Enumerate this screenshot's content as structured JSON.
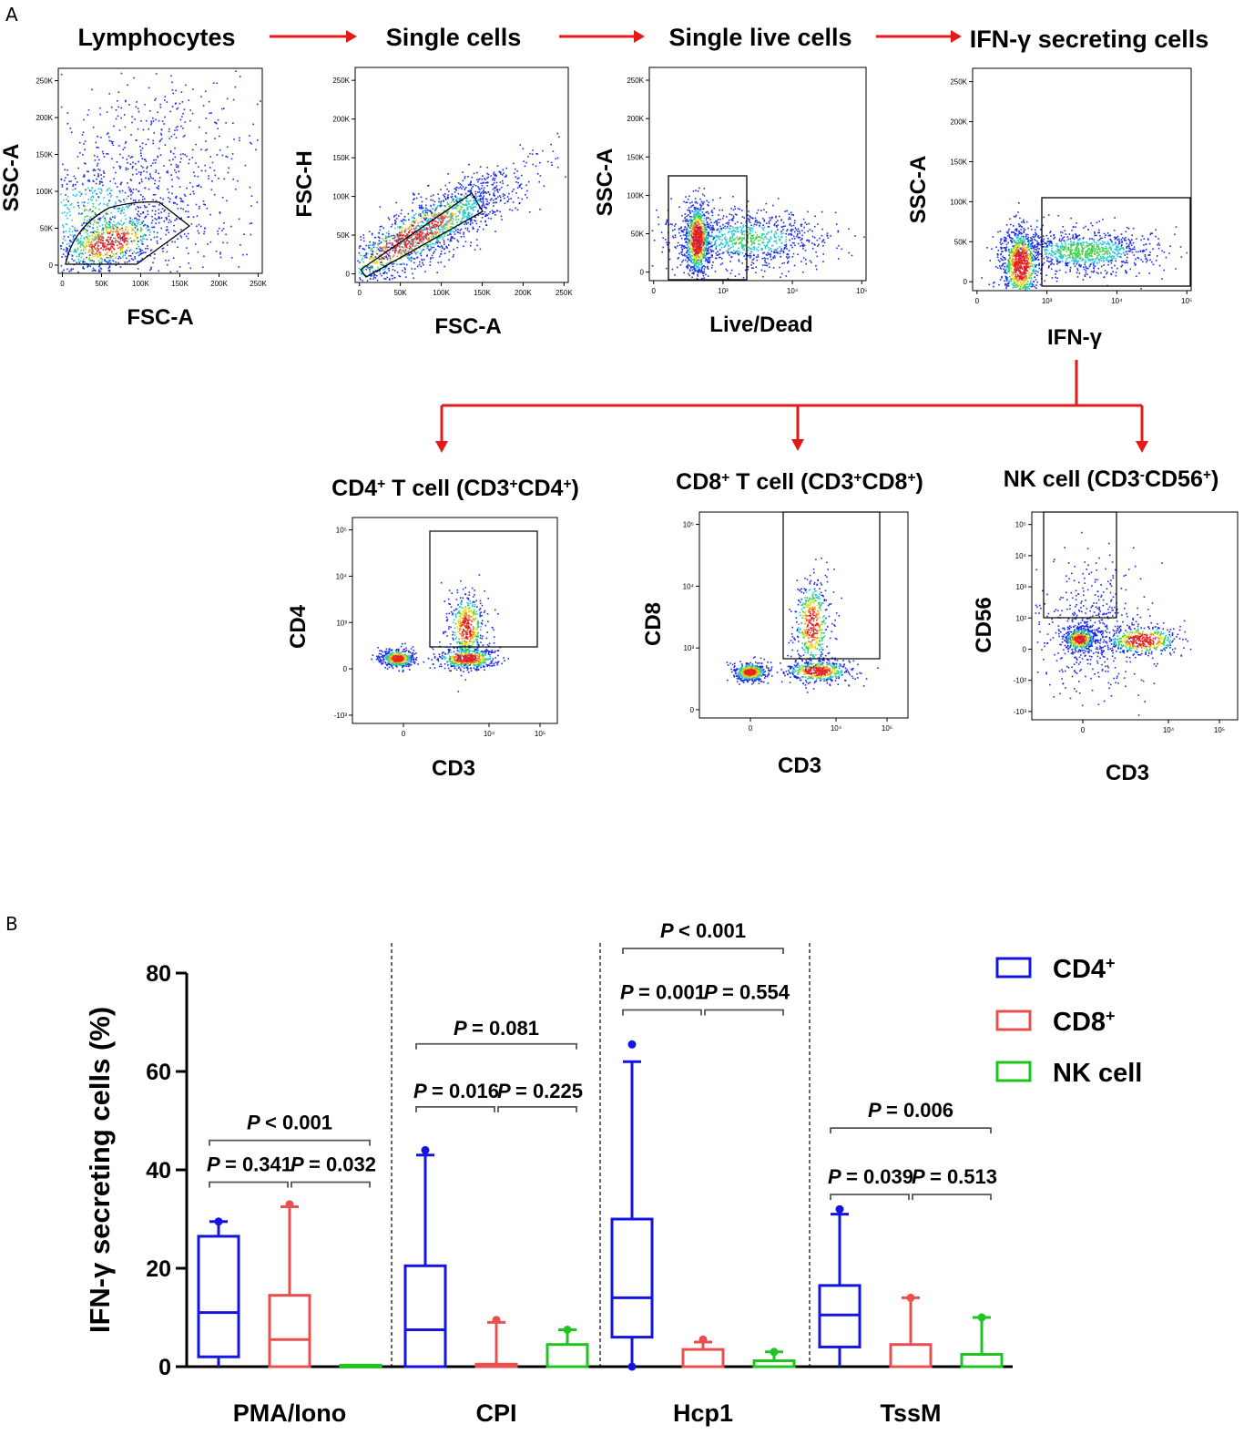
{
  "panel_a": {
    "label": "A",
    "gating_steps": [
      {
        "title": "Lymphocytes",
        "xlabel": "FSC-A",
        "ylabel": "SSC-A",
        "xticks": [
          "0",
          "50K",
          "100K",
          "150K",
          "200K",
          "250K"
        ],
        "yticks": [
          "0",
          "50K",
          "100K",
          "150K",
          "200K",
          "250K"
        ]
      },
      {
        "title": "Single cells",
        "xlabel": "FSC-A",
        "ylabel": "FSC-H",
        "xticks": [
          "0",
          "50K",
          "100K",
          "150K",
          "200K",
          "250K"
        ],
        "yticks": [
          "0",
          "50K",
          "100K",
          "150K",
          "200K",
          "250K"
        ]
      },
      {
        "title": "Single live cells",
        "xlabel": "Live/Dead",
        "ylabel": "SSC-A",
        "xticks": [
          "0",
          "10³",
          "10⁴",
          "10⁵"
        ],
        "yticks": [
          "0",
          "50K",
          "100K",
          "150K",
          "200K",
          "250K"
        ]
      },
      {
        "title": "IFN-γ secreting cells",
        "xlabel": "IFN-γ",
        "ylabel": "SSC-A",
        "xticks": [
          "0",
          "10³",
          "10⁴",
          "10⁵"
        ],
        "yticks": [
          "0",
          "50K",
          "100K",
          "150K",
          "200K",
          "250K"
        ]
      }
    ],
    "subsets": [
      {
        "title_main": "CD4",
        "title_sup": "+",
        "title_rest": " T cell (CD3",
        "title_sup2": "+",
        "title_mid": "CD4",
        "title_sup3": "+",
        "title_end": ")",
        "xlabel": "CD3",
        "ylabel": "CD4",
        "xticks": [
          "0",
          "10⁴",
          "10⁵"
        ],
        "yticks": [
          "-10³",
          "0",
          "10³",
          "10⁴",
          "10⁵"
        ]
      },
      {
        "title_main": "CD8",
        "title_sup": "+",
        "title_rest": " T cell (CD3",
        "title_sup2": "+",
        "title_mid": "CD8",
        "title_sup3": "+",
        "title_end": ")",
        "xlabel": "CD3",
        "ylabel": "CD8",
        "xticks": [
          "0",
          "10⁴",
          "10⁵"
        ],
        "yticks": [
          "0",
          "10³",
          "10⁴",
          "10⁵"
        ]
      },
      {
        "title_main": "NK cell (CD3",
        "title_sup": "-",
        "title_rest": "CD56",
        "title_sup2": "+",
        "title_mid": "",
        "title_sup3": "",
        "title_end": ")",
        "xlabel": "CD3",
        "ylabel": "CD56",
        "xticks": [
          "0",
          "10⁴",
          "10⁵"
        ],
        "yticks": [
          "-10³",
          "-10²",
          "0",
          "10²",
          "10³",
          "10⁴",
          "10⁵"
        ]
      }
    ]
  },
  "panel_b": {
    "label": "B"
  },
  "colors": {
    "cd4": "#1414e0",
    "cd8": "#e85050",
    "nk": "#1fc41f",
    "arrow": "#e41a1a"
  },
  "chart_data": {
    "type": "box",
    "ylabel": "IFN-γ secreting cells (%)",
    "ylim": [
      0,
      80
    ],
    "yticks": [
      "0",
      "20",
      "40",
      "60",
      "80"
    ],
    "categories": [
      "PMA/Iono",
      "CPI",
      "Hcp1",
      "TssM"
    ],
    "legend": [
      {
        "name": "CD4",
        "sup": "+"
      },
      {
        "name": "CD8",
        "sup": "+"
      },
      {
        "name": "NK cell",
        "sup": ""
      }
    ],
    "series": [
      {
        "name": "CD4+",
        "boxes": [
          {
            "min": 0,
            "q1": 2,
            "median": 11,
            "q3": 26.5,
            "max": 29.5,
            "outliers": [
              29.5
            ]
          },
          {
            "min": 0,
            "q1": 0,
            "median": 7.5,
            "q3": 20.5,
            "max": 43,
            "outliers": [
              44
            ]
          },
          {
            "min": 0,
            "q1": 6,
            "median": 14,
            "q3": 30,
            "max": 62,
            "outliers": [
              65.5,
              0
            ]
          },
          {
            "min": 0,
            "q1": 4,
            "median": 10.5,
            "q3": 16.5,
            "max": 31,
            "outliers": [
              32
            ]
          }
        ]
      },
      {
        "name": "CD8+",
        "boxes": [
          {
            "min": 0,
            "q1": 0,
            "median": 5.5,
            "q3": 14.5,
            "max": 32.5,
            "outliers": [
              33
            ]
          },
          {
            "min": 0,
            "q1": 0,
            "median": 0,
            "q3": 0.5,
            "max": 9,
            "outliers": [
              9.5
            ]
          },
          {
            "min": 0,
            "q1": 0,
            "median": 0,
            "q3": 3.5,
            "max": 5,
            "outliers": [
              5.5
            ]
          },
          {
            "min": 0,
            "q1": 0,
            "median": 0,
            "q3": 4.5,
            "max": 14,
            "outliers": [
              14
            ]
          }
        ]
      },
      {
        "name": "NK cell",
        "boxes": [
          {
            "min": 0,
            "q1": 0,
            "median": 0,
            "q3": 0.3,
            "max": 0.3,
            "outliers": []
          },
          {
            "min": 0,
            "q1": 0,
            "median": 0,
            "q3": 4.5,
            "max": 7.5,
            "outliers": [
              7.5
            ]
          },
          {
            "min": 0,
            "q1": 0,
            "median": 0,
            "q3": 1.2,
            "max": 3,
            "outliers": [
              3
            ]
          },
          {
            "min": 0,
            "q1": 0,
            "median": 0,
            "q3": 2.5,
            "max": 10,
            "outliers": [
              10
            ]
          }
        ]
      }
    ],
    "comparisons": [
      {
        "group": 0,
        "text_12": "= 0.341",
        "text_23": "= 0.032",
        "text_13": "< 0.001"
      },
      {
        "group": 1,
        "text_12": "= 0.016",
        "text_23": "= 0.225",
        "text_13": "= 0.081"
      },
      {
        "group": 2,
        "text_12": "= 0.001",
        "text_23": "= 0.554",
        "text_13": "< 0.001"
      },
      {
        "group": 3,
        "text_12": "= 0.039",
        "text_23": "= 0.513",
        "text_13": "= 0.006"
      }
    ],
    "p_symbol": "P"
  }
}
